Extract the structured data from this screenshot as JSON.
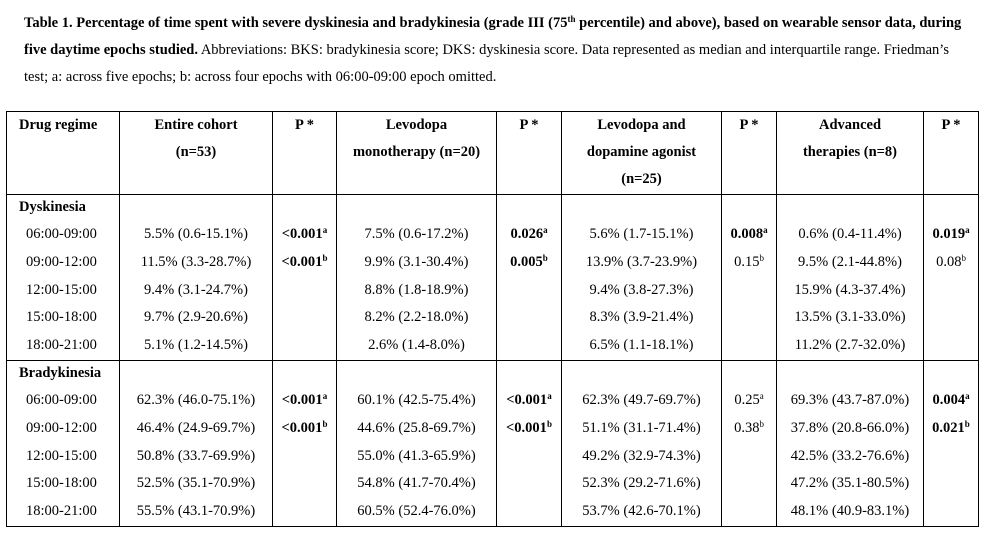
{
  "caption": {
    "title_bold": "Table 1. Percentage of time spent with severe dyskinesia and bradykinesia (grade III (75th percentile) and above), based on wearable sensor data, during five daytime epochs studied.",
    "title_pre": "Table 1. Percentage of time spent with severe dyskinesia and bradykinesia (grade III (75",
    "title_sup": "th",
    "title_post": " percentile) and above), based on wearable sensor data, during five daytime epochs studied.",
    "rest": " Abbreviations: BKS: bradykinesia score; DKS: dyskinesia score. Data represented as median and interquartile range. Friedman’s test; a: across five epochs; b: across four epochs with 06:00-09:00 epoch omitted."
  },
  "table": {
    "headers": {
      "drug_regime": "Drug regime",
      "entire_cohort": [
        "Entire cohort",
        "(n=53)"
      ],
      "p1": "P *",
      "levodopa_mono": [
        "Levodopa",
        "monotherapy (n=20)"
      ],
      "p2": "P *",
      "levodopa_da": [
        "Levodopa and",
        "dopamine agonist",
        "(n=25)"
      ],
      "p3": "P *",
      "advanced": [
        "Advanced",
        "therapies (n=8)"
      ],
      "p4": "P *"
    },
    "dyskinesia": {
      "label": "Dyskinesia",
      "rows": [
        {
          "epoch": "06:00-09:00",
          "cohort": "5.5% (0.6-15.1%)",
          "p1": "<0.001",
          "p1_sup": "a",
          "mono": "7.5% (0.6-17.2%)",
          "p2": "0.026",
          "p2_sup": "a",
          "da": "5.6% (1.7-15.1%)",
          "p3": "0.008",
          "p3_sup": "a",
          "adv": "0.6% (0.4-11.4%)",
          "p4": "0.019",
          "p4_sup": "a"
        },
        {
          "epoch": "09:00-12:00",
          "cohort": "11.5% (3.3-28.7%)",
          "p1": "<0.001",
          "p1_sup": "b",
          "mono": "9.9% (3.1-30.4%)",
          "p2": "0.005",
          "p2_sup": "b",
          "da": "13.9% (3.7-23.9%)",
          "p3": "0.15",
          "p3_sup": "b",
          "adv": "9.5% (2.1-44.8%)",
          "p4": "0.08",
          "p4_sup": "b"
        },
        {
          "epoch": "12:00-15:00",
          "cohort": "9.4% (3.1-24.7%)",
          "mono": "8.8% (1.8-18.9%)",
          "da": "9.4% (3.8-27.3%)",
          "adv": "15.9% (4.3-37.4%)"
        },
        {
          "epoch": "15:00-18:00",
          "cohort": "9.7% (2.9-20.6%)",
          "mono": "8.2% (2.2-18.0%)",
          "da": "8.3% (3.9-21.4%)",
          "adv": "13.5% (3.1-33.0%)"
        },
        {
          "epoch": "18:00-21:00",
          "cohort": "5.1% (1.2-14.5%)",
          "mono": "2.6% (1.4-8.0%)",
          "da": "6.5% (1.1-18.1%)",
          "adv": "11.2% (2.7-32.0%)"
        }
      ]
    },
    "bradykinesia": {
      "label": "Bradykinesia",
      "rows": [
        {
          "epoch": "06:00-09:00",
          "cohort": "62.3% (46.0-75.1%)",
          "p1": "<0.001",
          "p1_sup": "a",
          "mono": "60.1% (42.5-75.4%)",
          "p2": "<0.001",
          "p2_sup": "a",
          "da": "62.3% (49.7-69.7%)",
          "p3": "0.25",
          "p3_sup": "a",
          "adv": "69.3% (43.7-87.0%)",
          "p4": "0.004",
          "p4_sup": "a"
        },
        {
          "epoch": "09:00-12:00",
          "cohort": "46.4% (24.9-69.7%)",
          "p1": "<0.001",
          "p1_sup": "b",
          "mono": "44.6% (25.8-69.7%)",
          "p2": "<0.001",
          "p2_sup": "b",
          "da": "51.1% (31.1-71.4%)",
          "p3": "0.38",
          "p3_sup": "b",
          "adv": "37.8% (20.8-66.0%)",
          "p4": "0.021",
          "p4_sup": "b"
        },
        {
          "epoch": "12:00-15:00",
          "cohort": "50.8% (33.7-69.9%)",
          "mono": "55.0% (41.3-65.9%)",
          "da": "49.2% (32.9-74.3%)",
          "adv": "42.5% (33.2-76.6%)"
        },
        {
          "epoch": "15:00-18:00",
          "cohort": "52.5% (35.1-70.9%)",
          "mono": "54.8% (41.7-70.4%)",
          "da": "52.3% (29.2-71.6%)",
          "adv": "47.2% (35.1-80.5%)"
        },
        {
          "epoch": "18:00-21:00",
          "cohort": "55.5% (43.1-70.9%)",
          "mono": "60.5% (52.4-76.0%)",
          "da": "53.7% (42.6-70.1%)",
          "adv": "48.1% (40.9-83.1%)"
        }
      ]
    }
  }
}
